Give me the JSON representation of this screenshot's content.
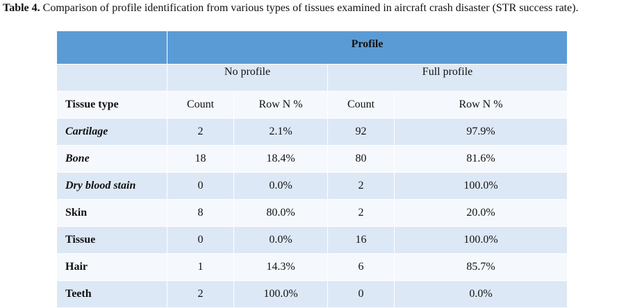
{
  "caption": {
    "label": "Table 4.",
    "text": " Comparison of profile identification from various types of tissues examined in aircraft crash disaster (STR success rate)."
  },
  "table": {
    "profile_header": "Profile",
    "group_headers": [
      "No profile",
      "Full profile"
    ],
    "column_headers": [
      "Tissue type",
      "Count",
      "Row N %",
      "Count",
      "Row N %"
    ],
    "rows": [
      {
        "tissue": "Cartilage",
        "no_count": "2",
        "no_pct": "2.1%",
        "full_count": "92",
        "full_pct": "97.9%"
      },
      {
        "tissue": "Bone",
        "no_count": "18",
        "no_pct": "18.4%",
        "full_count": "80",
        "full_pct": "81.6%"
      },
      {
        "tissue": "Dry blood stain",
        "no_count": "0",
        "no_pct": "0.0%",
        "full_count": "2",
        "full_pct": "100.0%"
      },
      {
        "tissue": "Skin",
        "no_count": "8",
        "no_pct": "80.0%",
        "full_count": "2",
        "full_pct": "20.0%"
      },
      {
        "tissue": "Tissue",
        "no_count": "0",
        "no_pct": "0.0%",
        "full_count": "16",
        "full_pct": "100.0%"
      },
      {
        "tissue": "Hair",
        "no_count": "1",
        "no_pct": "14.3%",
        "full_count": "6",
        "full_pct": "85.7%"
      },
      {
        "tissue": "Teeth",
        "no_count": "2",
        "no_pct": "100.0%",
        "full_count": "0",
        "full_pct": "0.0%"
      }
    ]
  }
}
